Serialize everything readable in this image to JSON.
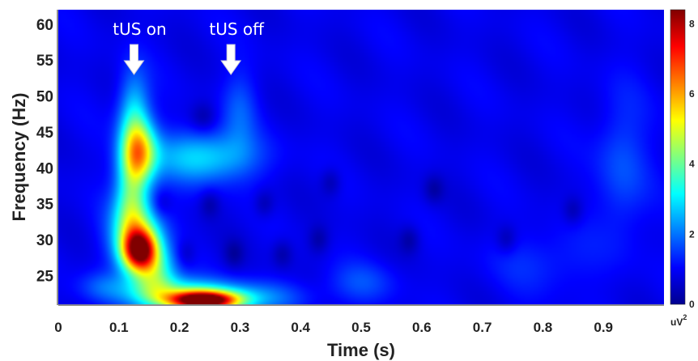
{
  "chart_data": {
    "type": "heatmap",
    "xlabel": "Time (s)",
    "ylabel": "Frequency (Hz)",
    "xlim": [
      0,
      1.0
    ],
    "ylim": [
      21,
      62
    ],
    "x_ticks": [
      "0",
      "0.1",
      "0.2",
      "0.3",
      "0.4",
      "0.5",
      "0.6",
      "0.7",
      "0.8",
      "0.9"
    ],
    "x_tick_values": [
      0,
      0.1,
      0.2,
      0.3,
      0.4,
      0.5,
      0.6,
      0.7,
      0.8,
      0.9
    ],
    "y_ticks": [
      "25",
      "30",
      "35",
      "40",
      "45",
      "50",
      "55",
      "60"
    ],
    "y_tick_values": [
      25,
      30,
      35,
      40,
      45,
      50,
      55,
      60
    ],
    "colorbar": {
      "unit": "uV",
      "unit_exp": "2",
      "min": 0,
      "max": 8.4,
      "ticks": [
        "0",
        "2",
        "4",
        "6",
        "8"
      ],
      "tick_values": [
        0,
        2,
        4,
        6,
        8
      ],
      "colormap": "jet"
    },
    "annotations": [
      {
        "label": "tUS on",
        "x": 0.125,
        "marker": "down-arrow"
      },
      {
        "label": "tUS off",
        "x": 0.285,
        "marker": "down-arrow"
      }
    ],
    "background_power": 0.9,
    "power_blobs": [
      {
        "t": 0.135,
        "f": 28.5,
        "st": 0.02,
        "sf": 2.0,
        "amp": 5.8
      },
      {
        "t": 0.13,
        "f": 31,
        "st": 0.03,
        "sf": 3.5,
        "amp": 2.8
      },
      {
        "t": 0.135,
        "f": 42,
        "st": 0.02,
        "sf": 3.0,
        "amp": 3.6
      },
      {
        "t": 0.125,
        "f": 47,
        "st": 0.018,
        "sf": 4.5,
        "amp": 2.0
      },
      {
        "t": 0.12,
        "f": 36,
        "st": 0.018,
        "sf": 5.0,
        "amp": 2.2
      },
      {
        "t": 0.16,
        "f": 25,
        "st": 0.025,
        "sf": 2.5,
        "amp": 2.6
      },
      {
        "t": 0.24,
        "f": 41.5,
        "st": 0.06,
        "sf": 2.5,
        "amp": 2.0
      },
      {
        "t": 0.24,
        "f": 21.5,
        "st": 0.04,
        "sf": 0.9,
        "amp": 7.8
      },
      {
        "t": 0.2,
        "f": 22.5,
        "st": 0.06,
        "sf": 1.5,
        "amp": 2.5
      },
      {
        "t": 0.32,
        "f": 22,
        "st": 0.06,
        "sf": 1.5,
        "amp": 1.2
      },
      {
        "t": 0.075,
        "f": 23.5,
        "st": 0.03,
        "sf": 1.5,
        "amp": 0.8
      },
      {
        "t": 0.5,
        "f": 24,
        "st": 0.04,
        "sf": 2.0,
        "amp": 0.7
      },
      {
        "t": 0.93,
        "f": 40,
        "st": 0.03,
        "sf": 7.0,
        "amp": 0.8
      },
      {
        "t": 0.8,
        "f": 27,
        "st": 0.06,
        "sf": 3.0,
        "amp": 0.5
      },
      {
        "t": 0.3,
        "f": 48,
        "st": 0.02,
        "sf": 4.0,
        "amp": 0.8
      }
    ],
    "low_power_spots": [
      {
        "t": 0.17,
        "f": 35,
        "st": 0.012,
        "sf": 1.4
      },
      {
        "t": 0.25,
        "f": 35,
        "st": 0.012,
        "sf": 1.4
      },
      {
        "t": 0.34,
        "f": 35,
        "st": 0.012,
        "sf": 1.4
      },
      {
        "t": 0.24,
        "f": 47,
        "st": 0.015,
        "sf": 1.5
      },
      {
        "t": 0.21,
        "f": 28,
        "st": 0.012,
        "sf": 1.4
      },
      {
        "t": 0.29,
        "f": 28,
        "st": 0.012,
        "sf": 1.4
      },
      {
        "t": 0.37,
        "f": 28,
        "st": 0.012,
        "sf": 1.4
      },
      {
        "t": 0.43,
        "f": 30,
        "st": 0.012,
        "sf": 1.4
      },
      {
        "t": 0.58,
        "f": 30,
        "st": 0.012,
        "sf": 1.4
      },
      {
        "t": 0.74,
        "f": 30,
        "st": 0.012,
        "sf": 1.4
      },
      {
        "t": 0.45,
        "f": 38,
        "st": 0.012,
        "sf": 1.4
      },
      {
        "t": 0.62,
        "f": 37,
        "st": 0.012,
        "sf": 1.4
      },
      {
        "t": 0.85,
        "f": 34,
        "st": 0.012,
        "sf": 1.4
      }
    ]
  }
}
